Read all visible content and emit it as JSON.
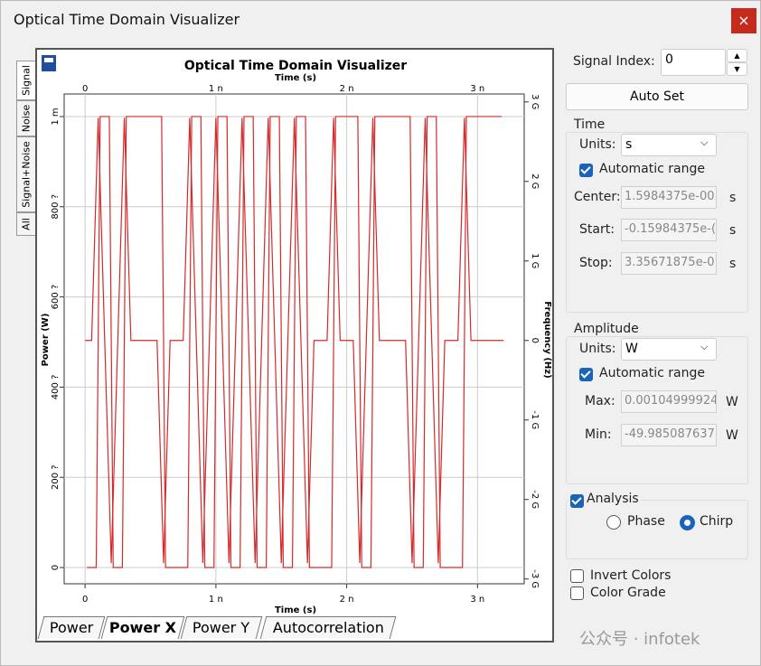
{
  "window": {
    "title": "Optical Time Domain Visualizer"
  },
  "side_tabs": [
    "Signal",
    "Noise",
    "Signal+Noise",
    "All"
  ],
  "chart_data": {
    "type": "line",
    "title": "Optical Time Domain Visualizer",
    "xlabel": "Time (s)",
    "ylabel": "Power (W)",
    "y2label": "Frequency (Hz)",
    "xlim": [
      -1.6e-10,
      3.357e-09
    ],
    "xticks": [
      0,
      {
        "value": 1e-09,
        "label": "1 n"
      },
      {
        "value": 2e-09,
        "label": "2 n"
      },
      {
        "value": 3e-09,
        "label": "3 n"
      }
    ],
    "ylim": [
      -3.6e-05,
      0.00105
    ],
    "yticks": [
      0,
      {
        "value": 0.0002,
        "label": "200 ?"
      },
      {
        "value": 0.0004,
        "label": "400 ?"
      },
      {
        "value": 0.0006,
        "label": "600 ?"
      },
      {
        "value": 0.0008,
        "label": "800 ?"
      },
      {
        "value": 0.001,
        "label": "1 m"
      }
    ],
    "y2lim": [
      -3060000000.0,
      3100000000.0
    ],
    "y2ticks": [
      {
        "value": -3000000000.0,
        "label": "-3 G"
      },
      {
        "value": -2000000000.0,
        "label": "-2 G"
      },
      {
        "value": -1000000000.0,
        "label": "-1 G"
      },
      0,
      {
        "value": 1000000000.0,
        "label": "1 G"
      },
      {
        "value": 2000000000.0,
        "label": "2 G"
      },
      {
        "value": 3000000000.0,
        "label": "3 G"
      }
    ],
    "grid": true,
    "series": [
      {
        "color": "#d42a2a",
        "x": [
          1.5e-11,
          8.5e-11,
          1.15e-10,
          1.85e-10,
          2.15e-10,
          2.85e-10,
          3.15e-10,
          3.85e-10,
          4.15e-10,
          4.85e-10,
          5.15e-10,
          5.85e-10,
          6.15e-10,
          6.85e-10,
          7.15e-10,
          7.85e-10,
          8.15e-10,
          8.85e-10,
          9.15e-10,
          9.85e-10,
          1.015e-09,
          1.085e-09,
          1.115e-09,
          1.185e-09,
          1.215e-09,
          1.285e-09,
          1.315e-09,
          1.385e-09,
          1.415e-09,
          1.485e-09,
          1.515e-09,
          1.585e-09,
          1.615e-09,
          1.685e-09,
          1.715e-09,
          1.785e-09,
          1.815e-09,
          1.885e-09,
          1.915e-09,
          1.985e-09,
          2.015e-09,
          2.085e-09,
          2.115e-09,
          2.185e-09,
          2.215e-09,
          2.285e-09,
          2.315e-09,
          2.385e-09,
          2.415e-09,
          2.485e-09,
          2.515e-09,
          2.585e-09,
          2.615e-09,
          2.685e-09,
          2.715e-09,
          2.785e-09,
          2.815e-09,
          2.885e-09,
          2.915e-09,
          2.985e-09,
          3.015e-09,
          3.085e-09,
          3.115e-09,
          3.185e-09
        ],
        "values": [
          0,
          0,
          0.001,
          0.001,
          0,
          0,
          0.001,
          0.001,
          0.001,
          0.001,
          0.001,
          0.001,
          0,
          0,
          0,
          0,
          0.001,
          0.001,
          0,
          0,
          0.001,
          0.001,
          0,
          0,
          0.001,
          0.001,
          0,
          0,
          0.001,
          0.001,
          0,
          0,
          0.001,
          0.001,
          0,
          0,
          0,
          0,
          0.001,
          0.001,
          0.001,
          0.001,
          0,
          0,
          0.001,
          0.001,
          0.001,
          0.001,
          0.001,
          0.001,
          0,
          0,
          0.001,
          0.001,
          0,
          0,
          0,
          0,
          0.001,
          0.001,
          0.001,
          0.001,
          0.001,
          0.001
        ]
      },
      {
        "color": "#d42a2a",
        "axis": "y2",
        "x": [
          0,
          5e-11,
          1e-10,
          1.5e-10,
          2e-10,
          2.5e-10,
          3e-10,
          3.5e-10,
          4e-10,
          4.5e-10,
          5e-10,
          5.5e-10,
          6e-10,
          6.5e-10,
          7e-10,
          7.5e-10,
          8e-10,
          8.5e-10,
          9e-10,
          9.5e-10,
          1e-09,
          1.05e-09,
          1.1e-09,
          1.15e-09,
          1.2e-09,
          1.25e-09,
          1.3e-09,
          1.35e-09,
          1.4e-09,
          1.45e-09,
          1.5e-09,
          1.55e-09,
          1.6e-09,
          1.65e-09,
          1.7e-09,
          1.75e-09,
          1.8e-09,
          1.85e-09,
          1.9e-09,
          1.95e-09,
          2e-09,
          2.05e-09,
          2.1e-09,
          2.15e-09,
          2.2e-09,
          2.25e-09,
          2.3e-09,
          2.35e-09,
          2.4e-09,
          2.45e-09,
          2.5e-09,
          2.55e-09,
          2.6e-09,
          2.65e-09,
          2.7e-09,
          2.75e-09,
          2.8e-09,
          2.85e-09,
          2.9e-09,
          2.95e-09,
          3e-09,
          3.05e-09,
          3.1e-09,
          3.15e-09,
          3.2e-09
        ],
        "values": [
          0,
          0,
          2800000000.0,
          0,
          -2800000000.0,
          0,
          2800000000.0,
          0,
          0,
          0,
          0,
          0,
          -2800000000.0,
          0,
          0,
          0,
          2800000000.0,
          0,
          -2800000000.0,
          0,
          2800000000.0,
          0,
          -2800000000.0,
          0,
          2800000000.0,
          0,
          -2800000000.0,
          0,
          2800000000.0,
          0,
          -2800000000.0,
          0,
          2800000000.0,
          0,
          -2800000000.0,
          0,
          0,
          0,
          2800000000.0,
          0,
          0,
          0,
          -2800000000.0,
          0,
          2800000000.0,
          0,
          0,
          0,
          0,
          0,
          -2800000000.0,
          0,
          2800000000.0,
          0,
          -2800000000.0,
          0,
          0,
          0,
          2800000000.0,
          0,
          0,
          0,
          0,
          0,
          0
        ]
      }
    ]
  },
  "bottom_tabs": [
    "Power",
    "Power X",
    "Power Y",
    "Autocorrelation"
  ],
  "panel": {
    "signal_index_label": "Signal Index:",
    "signal_index": "0",
    "auto_set": "Auto Set",
    "time": {
      "legend": "Time",
      "units_label": "Units:",
      "units": "s",
      "auto": "Automatic range",
      "center_label": "Center:",
      "center": "1.5984375e-00",
      "center_unit": "s",
      "start_label": "Start:",
      "start": "-0.15984375e-(",
      "start_unit": "s",
      "stop_label": "Stop:",
      "stop": "3.35671875e-0",
      "stop_unit": "s"
    },
    "amplitude": {
      "legend": "Amplitude",
      "units_label": "Units:",
      "units": "W",
      "auto": "Automatic range",
      "max_label": "Max:",
      "max": "0.00104999924",
      "max_unit": "W",
      "min_label": "Min:",
      "min": "-49.985087637",
      "min_unit": "W"
    },
    "analysis": {
      "label": "Analysis",
      "phase": "Phase",
      "chirp": "Chirp"
    },
    "invert_colors": "Invert Colors",
    "color_grade": "Color Grade"
  },
  "watermark": "公众号 · infotek"
}
